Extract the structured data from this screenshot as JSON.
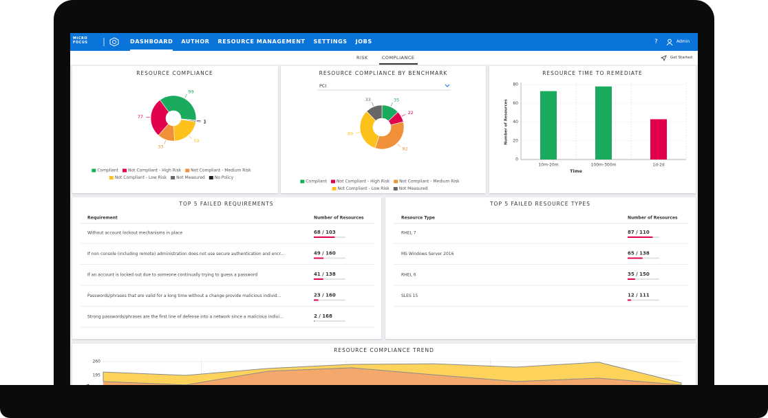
{
  "nav": {
    "logo": "MICRO FOCUS",
    "items": [
      "DASHBOARD",
      "AUTHOR",
      "RESOURCE MANAGEMENT",
      "SETTINGS",
      "JOBS"
    ],
    "help": "?",
    "user": "Admin"
  },
  "tabs": {
    "items": [
      "RISK",
      "COMPLIANCE"
    ],
    "get_started": "Get Started"
  },
  "chart_data": [
    {
      "type": "pie",
      "title": "RESOURCE COMPLIANCE",
      "categories": [
        "Compliant",
        "Not Compliant - High Risk",
        "Not Compliant - Medium Risk",
        "Not Compliant - Low Risk",
        "Not Measured",
        "No Policy"
      ],
      "values": [
        99,
        77,
        33,
        59,
        2,
        1
      ],
      "colors": [
        "#1bab5f",
        "#e0004d",
        "#f0913a",
        "#fcc21b",
        "#666666",
        "#222222"
      ]
    },
    {
      "type": "pie",
      "title": "RESOURCE COMPLIANCE BY BENCHMARK",
      "dropdown": "PCI",
      "categories": [
        "Compliant",
        "Not Compliant - High Risk",
        "Not Compliant - Medium Risk",
        "Not Compliant - Low Risk",
        "Not Measured"
      ],
      "values": [
        35,
        22,
        92,
        89,
        33
      ],
      "colors": [
        "#1bab5f",
        "#e0004d",
        "#f0913a",
        "#fcc21b",
        "#666666"
      ]
    },
    {
      "type": "bar",
      "title": "RESOURCE TIME TO REMEDIATE",
      "x_label": "Time",
      "y_label": "Number of Resources",
      "categories": [
        "10m-20m",
        "100m-300m",
        "1d-2d"
      ],
      "values": [
        73,
        78,
        43
      ],
      "colors": [
        "#1bab5f",
        "#1bab5f",
        "#e0004d"
      ],
      "ylim": [
        0,
        80
      ],
      "yticks": [
        0,
        20,
        40,
        60,
        80
      ],
      "grid": true
    },
    {
      "type": "area",
      "title": "RESOURCE COMPLIANCE TREND",
      "y_label": "Resources",
      "categories": [
        null,
        null,
        null,
        null,
        null,
        null,
        null,
        null
      ],
      "series": [
        {
          "color": "#f5a86c",
          "values": [
            166,
            150,
            215,
            231,
            198,
            166,
            182,
            150
          ]
        },
        {
          "color": "#fdd35c",
          "values": [
            45,
            45,
            13,
            16,
            52,
            68,
            75,
            9
          ]
        }
      ],
      "ylim": [
        0,
        260
      ],
      "yticks": [
        195,
        260
      ],
      "grid": true
    }
  ],
  "tables": [
    {
      "title": "TOP 5 FAILED REQUIREMENTS",
      "columns": [
        "Requirement",
        "Number of Resources"
      ],
      "rows": [
        {
          "name": "Without account lockout mechanisms in place",
          "resources": {
            "label": "68 / 103",
            "failed": 68,
            "total": 103
          }
        },
        {
          "name": "If non console (including remote) administration does not use secure authentication and encr...",
          "resources": {
            "label": "49 / 160",
            "failed": 49,
            "total": 160
          }
        },
        {
          "name": "If an account is locked out due to someone continually trying to guess a password",
          "resources": {
            "label": "41 / 138",
            "failed": 41,
            "total": 138
          }
        },
        {
          "name": "Passwords/phrases that are valid for a long time without a change provide malicious individ...",
          "resources": {
            "label": "23 / 160",
            "failed": 23,
            "total": 160
          }
        },
        {
          "name": "Strong passwords/phrases are the first line of defense into a network since a malicious indivi...",
          "resources": {
            "label": "2 / 168",
            "failed": 2,
            "total": 168
          }
        }
      ]
    },
    {
      "title": "TOP 5 FAILED RESOURCE TYPES",
      "columns": [
        "Resource Type",
        "Number of Resources"
      ],
      "rows": [
        {
          "name": "RHEL 7",
          "resources": {
            "label": "87 / 110",
            "failed": 87,
            "total": 110
          }
        },
        {
          "name": "MS Windows Server 2016",
          "resources": {
            "label": "65 / 138",
            "failed": 65,
            "total": 138
          }
        },
        {
          "name": "RHEL 6",
          "resources": {
            "label": "35 / 150",
            "failed": 35,
            "total": 150
          }
        },
        {
          "name": "SLES 15",
          "resources": {
            "label": "12 / 111",
            "failed": 12,
            "total": 111
          }
        }
      ]
    }
  ]
}
